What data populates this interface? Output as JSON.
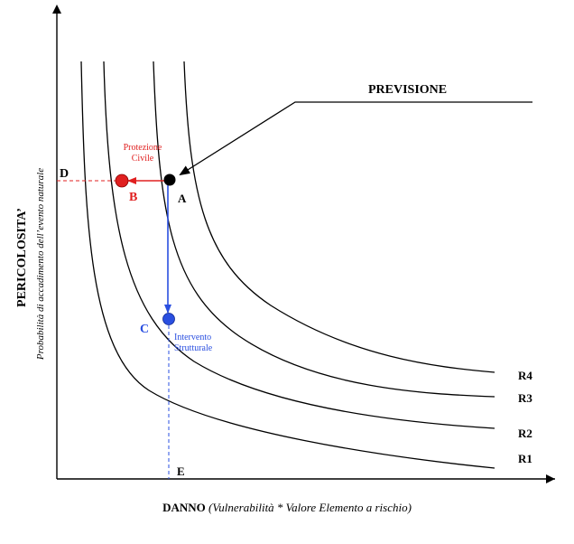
{
  "diagram": {
    "x_axis_label_bold": "DANNO",
    "x_axis_label_italic": "(Vulnerabilità * Valore Elemento a rischio)",
    "y_axis_label_bold": "PERICOLOSITA’",
    "y_axis_label_italic": "Probabilità di accadimento dell’evento naturale",
    "previsione_label": "PREVISIONE",
    "protezione_line1": "Protezione",
    "protezione_line2": "Civile",
    "intervento_line1": "Intervento",
    "intervento_line2": "Strutturale",
    "points": {
      "a": "A",
      "b": "B",
      "c": "C",
      "d": "D",
      "e": "E"
    },
    "curves": [
      "R4",
      "R3",
      "R2",
      "R1"
    ],
    "colors": {
      "axis": "#000000",
      "curve": "#000000",
      "point_a": "#000000",
      "point_b": "#e02020",
      "point_c": "#2a4fe0",
      "red_arrow": "#e02020",
      "blue_arrow": "#2a4fe0",
      "red_text": "#e02020",
      "blue_text": "#2a4fe0"
    }
  }
}
